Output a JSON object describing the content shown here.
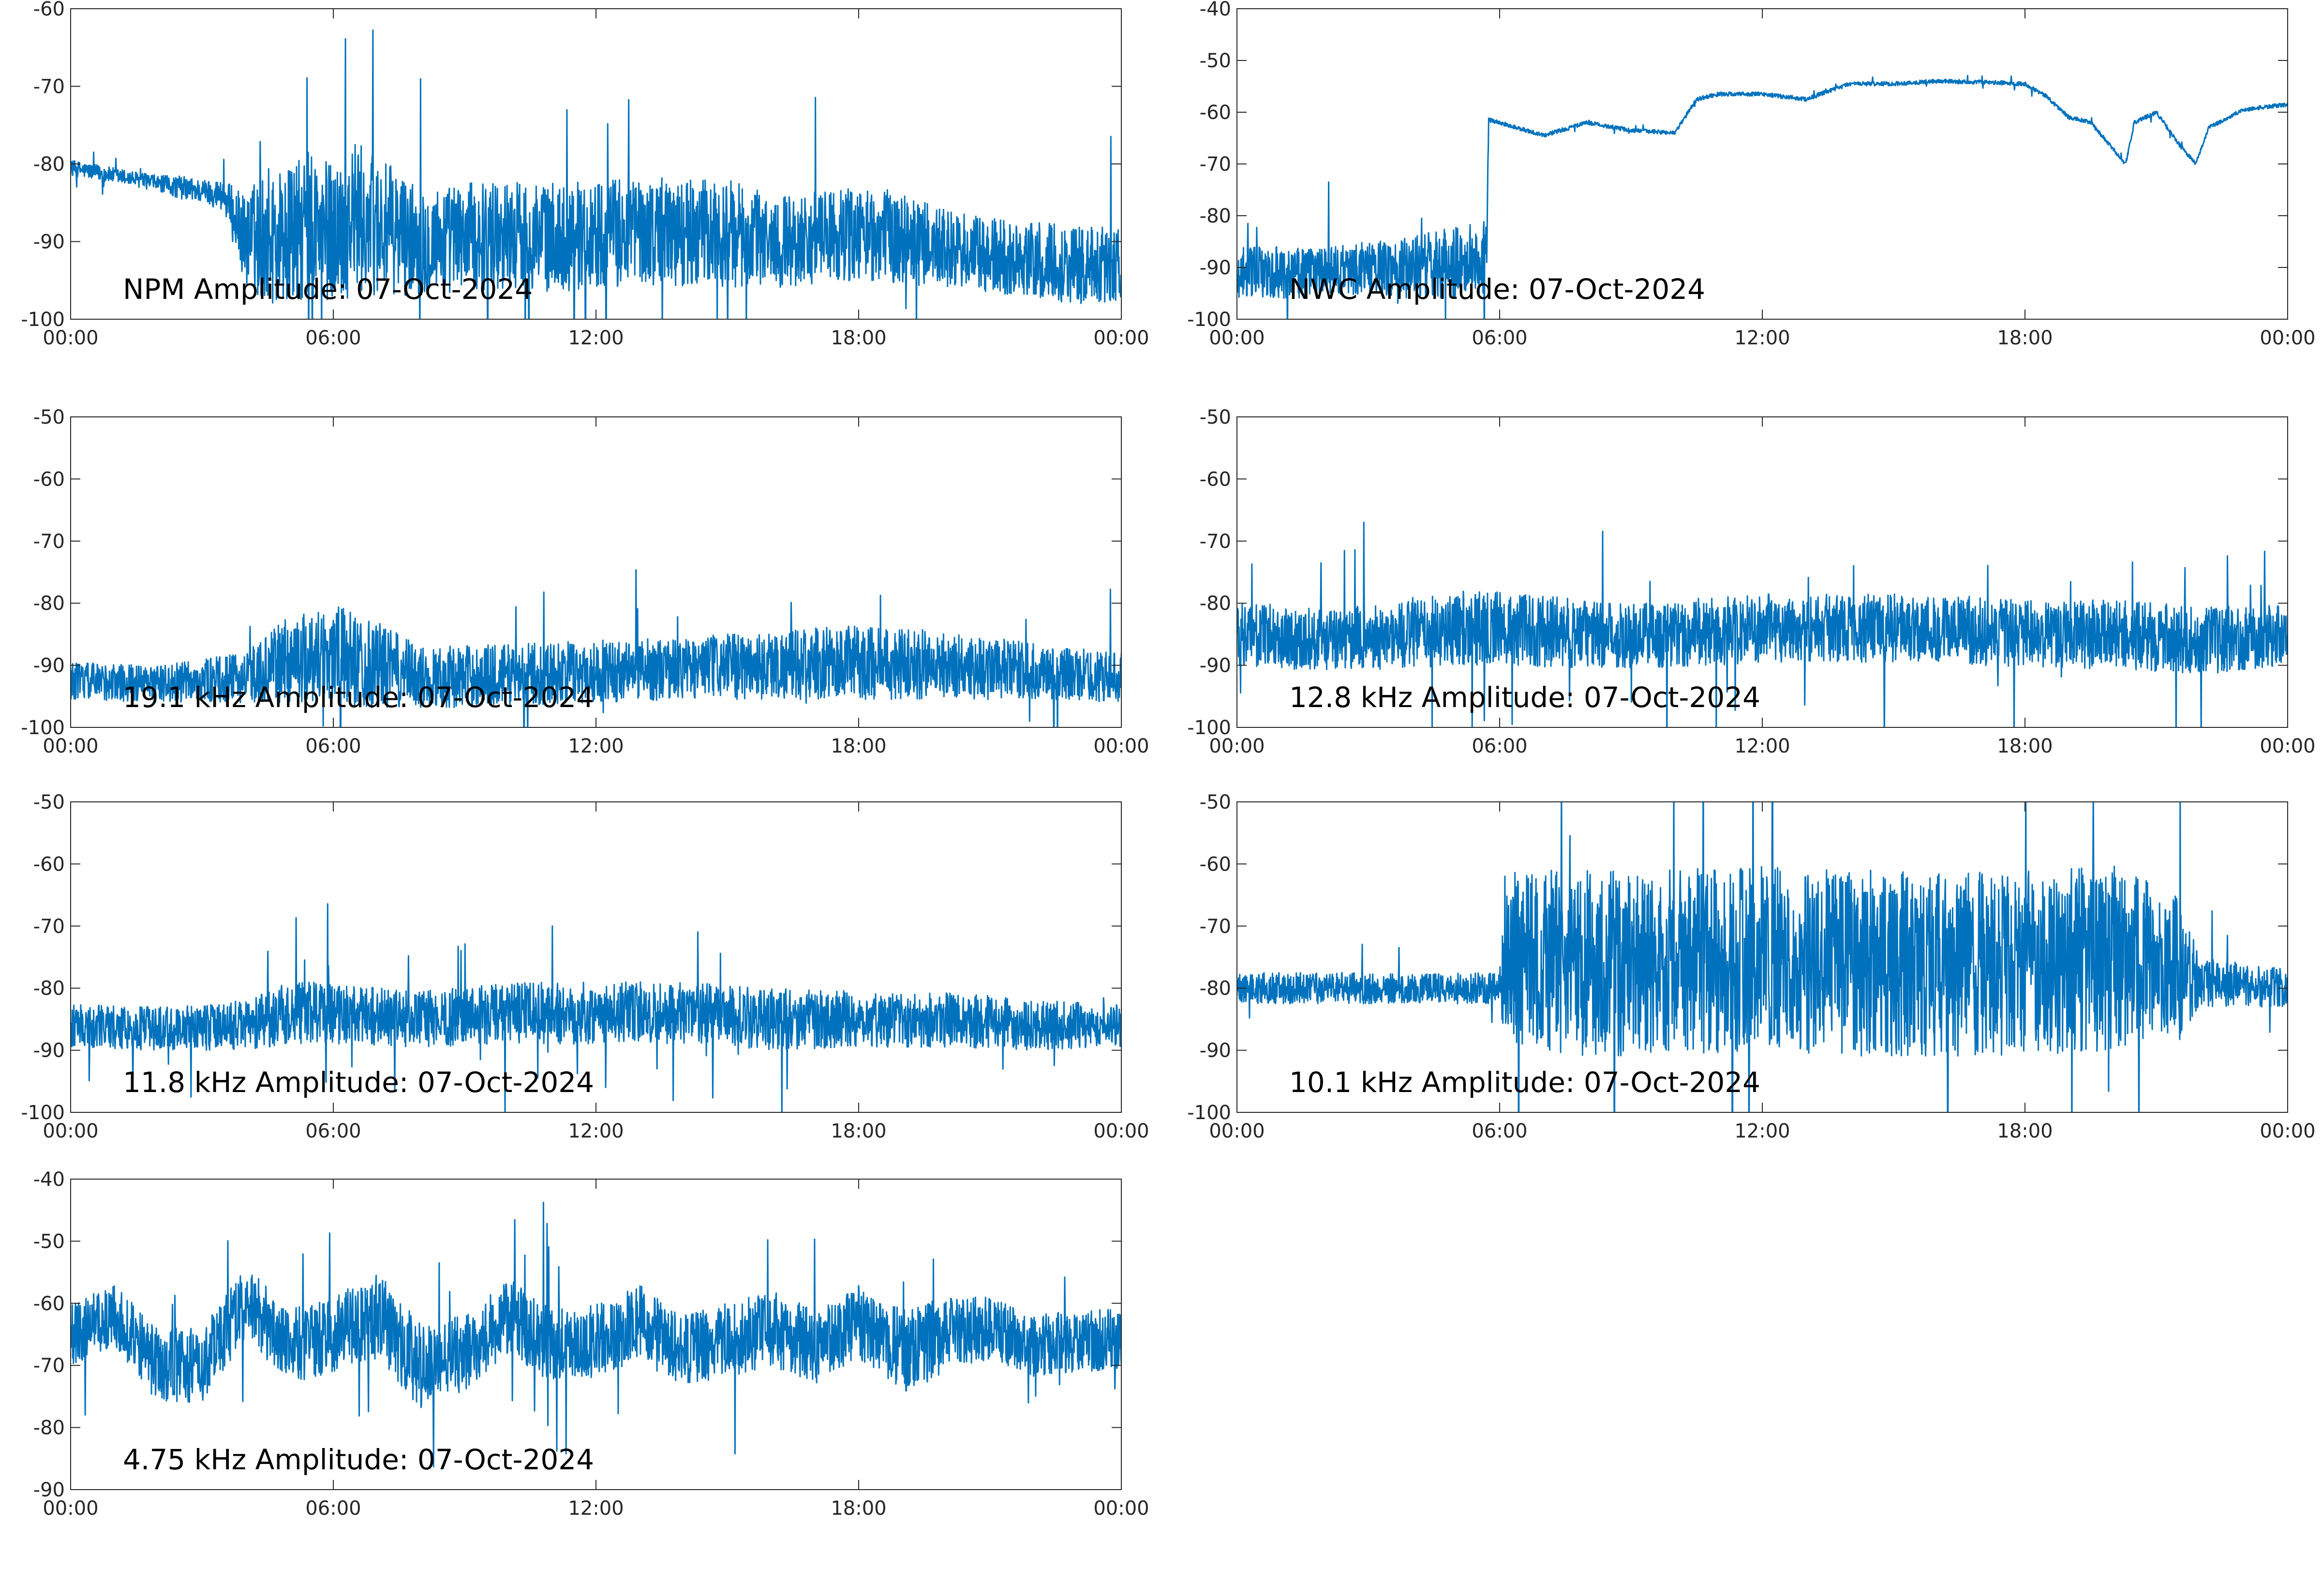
{
  "figure": {
    "line_color": "#0072BD",
    "x_ticks": [
      "00:00",
      "06:00",
      "12:00",
      "18:00",
      "00:00"
    ]
  },
  "chart_data": [
    {
      "type": "line",
      "title": "NPM Amplitude: 07-Oct-2024",
      "xlabel": "",
      "ylabel": "",
      "xlim": [
        0,
        24
      ],
      "ylim": [
        -100,
        -60
      ],
      "y_ticks": [
        -100,
        -90,
        -80,
        -70,
        -60
      ],
      "x_ticks": [
        "00:00",
        "06:00",
        "12:00",
        "18:00",
        "00:00"
      ],
      "grid": false,
      "series": [
        {
          "x": [
            0,
            0.5,
            1,
            1.5,
            2,
            2.5,
            3,
            3.5,
            4,
            4.5,
            5,
            5.5,
            6,
            6.5,
            7,
            7.5,
            8,
            9,
            10,
            11,
            12,
            13,
            14,
            15,
            16,
            17,
            18,
            19,
            20,
            21,
            22,
            23,
            24
          ],
          "y": [
            -80.5,
            -81,
            -81.5,
            -82,
            -82.5,
            -83,
            -83.5,
            -84,
            -90,
            -89,
            -89.5,
            -88,
            -89,
            -87,
            -88,
            -89,
            -90,
            -89.5,
            -89,
            -89.5,
            -89,
            -88.5,
            -89,
            -89,
            -90,
            -89.5,
            -89,
            -89.5,
            -91,
            -92,
            -92.5,
            -93,
            -93
          ],
          "band": [
            1,
            1,
            1,
            1,
            1,
            1.5,
            1.5,
            2,
            6,
            9,
            9,
            10,
            9,
            10,
            9,
            8,
            7,
            7,
            7,
            7,
            7,
            7,
            7,
            7,
            6,
            6,
            6,
            6,
            5,
            5,
            5,
            5,
            5
          ]
        }
      ]
    },
    {
      "type": "line",
      "title": "NWC Amplitude: 07-Oct-2024",
      "xlabel": "",
      "ylabel": "",
      "xlim": [
        0,
        24
      ],
      "ylim": [
        -100,
        -40
      ],
      "y_ticks": [
        -100,
        -90,
        -80,
        -70,
        -60,
        -50,
        -40
      ],
      "x_ticks": [
        "00:00",
        "06:00",
        "12:00",
        "18:00",
        "00:00"
      ],
      "grid": false,
      "series": [
        {
          "x": [
            0,
            1,
            2,
            3,
            4,
            5,
            5.7,
            5.75,
            6,
            7,
            8,
            9,
            10,
            10.5,
            11,
            12,
            12.5,
            13,
            14,
            15,
            16,
            17,
            18,
            18.5,
            19,
            19.5,
            20,
            20.3,
            20.5,
            21,
            21.5,
            21.9,
            22.2,
            23,
            24
          ],
          "y": [
            -91,
            -91,
            -91,
            -90,
            -90,
            -89,
            -88,
            -61.5,
            -62,
            -64.5,
            -62,
            -63.5,
            -64,
            -57.5,
            -56.5,
            -56.5,
            -57,
            -57.5,
            -54.5,
            -54.5,
            -54,
            -54.2,
            -54.5,
            -57,
            -61,
            -62,
            -67,
            -70,
            -62,
            -60,
            -66,
            -70,
            -63,
            -59.5,
            -58.5
          ],
          "band": [
            5,
            5,
            5,
            5,
            6,
            7,
            7,
            0.4,
            0.4,
            0.4,
            0.4,
            0.4,
            0.4,
            0.4,
            0.4,
            0.4,
            0.4,
            0.4,
            0.4,
            0.4,
            0.4,
            0.4,
            0.4,
            0.4,
            0.4,
            0.4,
            0.4,
            0.4,
            0.4,
            0.4,
            0.4,
            0.4,
            0.4,
            0.4,
            0.4
          ]
        }
      ]
    },
    {
      "type": "line",
      "title": "19.1 kHz Amplitude: 07-Oct-2024",
      "xlabel": "",
      "ylabel": "",
      "xlim": [
        0,
        24
      ],
      "ylim": [
        -100,
        -50
      ],
      "y_ticks": [
        -100,
        -90,
        -80,
        -70,
        -60,
        -50
      ],
      "x_ticks": [
        "00:00",
        "06:00",
        "12:00",
        "18:00",
        "00:00"
      ],
      "grid": false,
      "series": [
        {
          "x": [
            0,
            2,
            4,
            5,
            6,
            7,
            8,
            10,
            12,
            14,
            16,
            18,
            20,
            22,
            24
          ],
          "y": [
            -92.5,
            -93,
            -92,
            -89,
            -88,
            -90,
            -92,
            -91.5,
            -91,
            -90.5,
            -90,
            -89.5,
            -90,
            -91,
            -92
          ],
          "band": [
            3,
            3,
            4,
            7,
            8,
            7,
            5,
            5,
            5,
            5,
            5.5,
            6,
            5.5,
            4.5,
            4
          ]
        }
      ]
    },
    {
      "type": "line",
      "title": "12.8 kHz Amplitude: 07-Oct-2024",
      "xlabel": "",
      "ylabel": "",
      "xlim": [
        0,
        24
      ],
      "ylim": [
        -100,
        -50
      ],
      "y_ticks": [
        -100,
        -90,
        -80,
        -70,
        -60,
        -50
      ],
      "x_ticks": [
        "00:00",
        "06:00",
        "12:00",
        "18:00",
        "00:00"
      ],
      "grid": false,
      "series": [
        {
          "x": [
            0,
            2,
            4,
            5,
            6,
            8,
            10,
            12,
            14,
            16,
            18,
            20,
            22,
            24
          ],
          "y": [
            -85,
            -86,
            -85,
            -84,
            -84,
            -85,
            -85,
            -84,
            -84,
            -84,
            -85,
            -85,
            -86,
            -85
          ],
          "band": [
            5,
            5,
            5.5,
            6,
            6,
            5.5,
            5.5,
            5.5,
            5.5,
            5.5,
            5.5,
            5.5,
            5.5,
            5
          ]
        }
      ]
    },
    {
      "type": "line",
      "title": "11.8 kHz Amplitude: 07-Oct-2024",
      "xlabel": "",
      "ylabel": "",
      "xlim": [
        0,
        24
      ],
      "ylim": [
        -100,
        -50
      ],
      "y_ticks": [
        -100,
        -90,
        -80,
        -70,
        -60,
        -50
      ],
      "x_ticks": [
        "00:00",
        "06:00",
        "12:00",
        "18:00",
        "00:00"
      ],
      "grid": false,
      "series": [
        {
          "x": [
            0,
            2,
            4,
            5,
            6,
            8,
            10,
            12,
            14,
            16,
            18,
            20,
            22,
            24
          ],
          "y": [
            -86,
            -86.5,
            -86,
            -84,
            -84,
            -85,
            -84,
            -84,
            -84,
            -85,
            -85,
            -85,
            -86,
            -86
          ],
          "band": [
            3.5,
            3.5,
            4,
            5,
            5,
            4.5,
            5,
            5,
            5,
            5,
            4.5,
            4.5,
            4,
            3.5
          ]
        }
      ]
    },
    {
      "type": "line",
      "title": "10.1 kHz Amplitude: 07-Oct-2024",
      "xlabel": "",
      "ylabel": "",
      "xlim": [
        0,
        24
      ],
      "ylim": [
        -100,
        -50
      ],
      "y_ticks": [
        -100,
        -90,
        -80,
        -70,
        -60,
        -50
      ],
      "x_ticks": [
        "00:00",
        "06:00",
        "12:00",
        "18:00",
        "00:00"
      ],
      "grid": false,
      "series": [
        {
          "x": [
            0,
            2,
            4,
            6,
            6.1,
            8,
            10,
            12,
            14,
            16,
            18,
            20,
            21.5,
            22,
            24
          ],
          "y": [
            -80,
            -80,
            -80,
            -80,
            -75,
            -76,
            -76,
            -75,
            -76,
            -76,
            -76,
            -75,
            -77,
            -79,
            -80
          ],
          "band": [
            2.5,
            2.5,
            2.5,
            2.5,
            14,
            15,
            15,
            15,
            15,
            15,
            15,
            15,
            12,
            4,
            3
          ]
        }
      ]
    },
    {
      "type": "line",
      "title": "4.75 kHz Amplitude: 07-Oct-2024",
      "xlabel": "",
      "ylabel": "",
      "xlim": [
        0,
        24
      ],
      "ylim": [
        -90,
        -40
      ],
      "y_ticks": [
        -90,
        -80,
        -70,
        -60,
        -50,
        -40
      ],
      "x_ticks": [
        "00:00",
        "06:00",
        "12:00",
        "18:00",
        "00:00"
      ],
      "grid": false,
      "series": [
        {
          "x": [
            0,
            1,
            2,
            3,
            4,
            5,
            6,
            7,
            8,
            9,
            10,
            11,
            12,
            13,
            14,
            15,
            16,
            17,
            18,
            19,
            20,
            21,
            22,
            23,
            24
          ],
          "y": [
            -65,
            -62,
            -70,
            -70,
            -60,
            -67,
            -65,
            -62,
            -70,
            -68,
            -62,
            -67,
            -66,
            -63,
            -68,
            -66,
            -64,
            -67,
            -63,
            -68,
            -65,
            -64,
            -67,
            -66,
            -66
          ],
          "band": [
            5,
            5,
            6,
            6,
            6,
            6,
            6,
            7,
            7,
            6,
            6,
            6,
            6,
            6,
            6,
            6,
            6,
            6,
            6,
            7,
            6,
            5,
            5,
            5,
            5
          ]
        }
      ]
    }
  ]
}
